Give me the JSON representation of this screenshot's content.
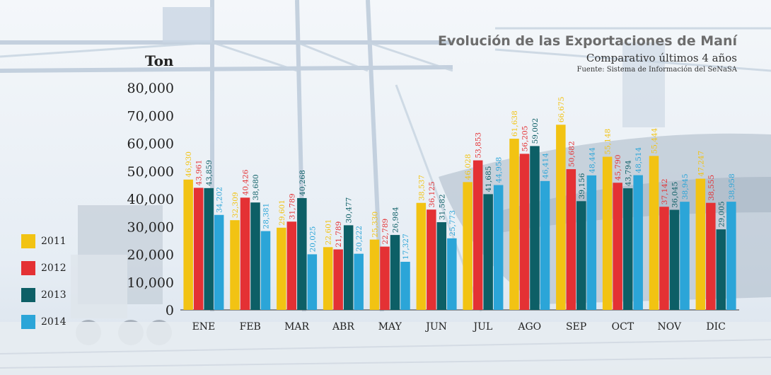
{
  "header": {
    "title": "Evolución de las Exportaciones de Maní",
    "subtitle": "Comparativo últimos 4 años",
    "source": "Fuente: Sistema de Información del SeNaSA"
  },
  "colors": {
    "2011": "#f2c313",
    "2012": "#e43134",
    "2013": "#0d5f66",
    "2014": "#2ba5d8"
  },
  "chart_data": {
    "type": "bar",
    "title": "Evolución de las Exportaciones de Maní",
    "subtitle": "Comparativo últimos 4 años",
    "ylabel": "Ton",
    "xlabel": "",
    "ylim": [
      0,
      80000
    ],
    "yticks": [
      "0",
      "10,000",
      "20,000",
      "30,000",
      "40,000",
      "50,000",
      "60,000",
      "70,000",
      "80,000"
    ],
    "categories": [
      "ENE",
      "FEB",
      "MAR",
      "ABR",
      "MAY",
      "JUN",
      "JUL",
      "AGO",
      "SEP",
      "OCT",
      "NOV",
      "DIC"
    ],
    "legend_position": "left",
    "series": [
      {
        "name": "2011",
        "values": [
          46930,
          32309,
          29601,
          22601,
          25330,
          38537,
          46028,
          61638,
          66675,
          55148,
          55444,
          47247
        ],
        "labels": [
          "46,930",
          "32,309",
          "29,601",
          "22,601",
          "25,330",
          "38,537",
          "46,028",
          "61,638",
          "66,675",
          "55,148",
          "55,444",
          "47,247"
        ]
      },
      {
        "name": "2012",
        "values": [
          43961,
          40426,
          31789,
          21789,
          22789,
          36125,
          53853,
          56205,
          50682,
          45790,
          37142,
          38555
        ],
        "labels": [
          "43,961",
          "40,426",
          "31,789",
          "21,789",
          "22,789",
          "36,125",
          "53,853",
          "56,205",
          "50,682",
          "45,790",
          "37,142",
          "38,555"
        ]
      },
      {
        "name": "2013",
        "values": [
          43859,
          38680,
          40268,
          30477,
          26984,
          31582,
          41685,
          59002,
          39156,
          43794,
          36045,
          29005
        ],
        "labels": [
          "43,859",
          "38,680",
          "40,268",
          "30,477",
          "26,984",
          "31,582",
          "41,685",
          "59,002",
          "39,156",
          "43,794",
          "36,045",
          "29,005"
        ]
      },
      {
        "name": "2014",
        "values": [
          34202,
          28381,
          20025,
          20222,
          17327,
          25773,
          44958,
          46414,
          48444,
          48514,
          38945,
          38958
        ],
        "labels": [
          "34,202",
          "28,381",
          "20,025",
          "20,222",
          "17,327",
          "25,773",
          "44,958",
          "46,414",
          "48,444",
          "48,514",
          "38,945",
          "38,958"
        ]
      }
    ]
  }
}
